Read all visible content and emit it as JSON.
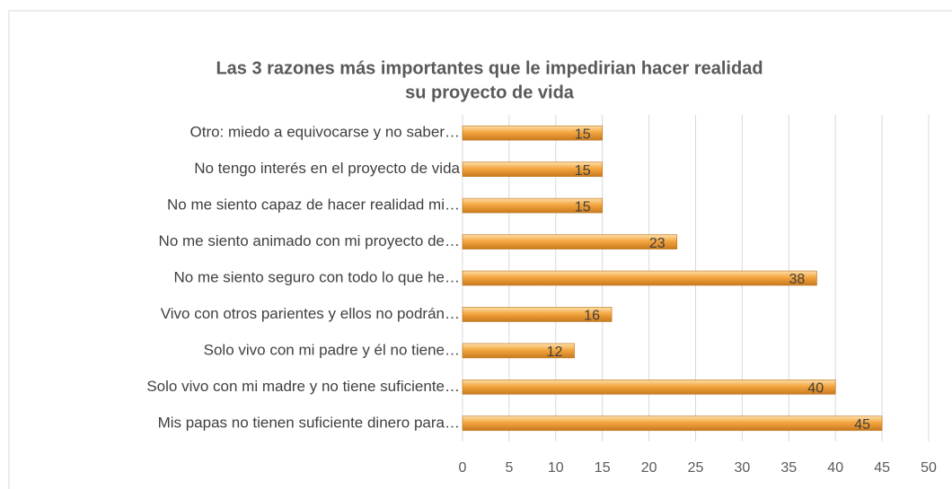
{
  "chart_data": {
    "type": "bar",
    "orientation": "horizontal",
    "title": [
      "Las 3 razones más importantes que le impedirian hacer realidad",
      "su proyecto de vida"
    ],
    "categories": [
      "Otro: miedo a equivocarse y no saber…",
      "No tengo interés en el proyecto de vida",
      "No me siento capaz de hacer realidad mi…",
      "No me siento animado con mi proyecto de…",
      "No me siento seguro con todo lo que he…",
      "Vivo con otros parientes y ellos no podrán…",
      "Solo vivo con mi padre y él no tiene…",
      "Solo vivo con mi madre y no tiene suficiente…",
      "Mis papas no tienen suficiente dinero para…"
    ],
    "values": [
      15,
      15,
      15,
      23,
      38,
      16,
      12,
      40,
      45
    ],
    "color": "#f0a040",
    "xlim": [
      0,
      50
    ],
    "xticks": [
      0,
      5,
      10,
      15,
      20,
      25,
      30,
      35,
      40,
      45,
      50
    ],
    "grid": true
  }
}
